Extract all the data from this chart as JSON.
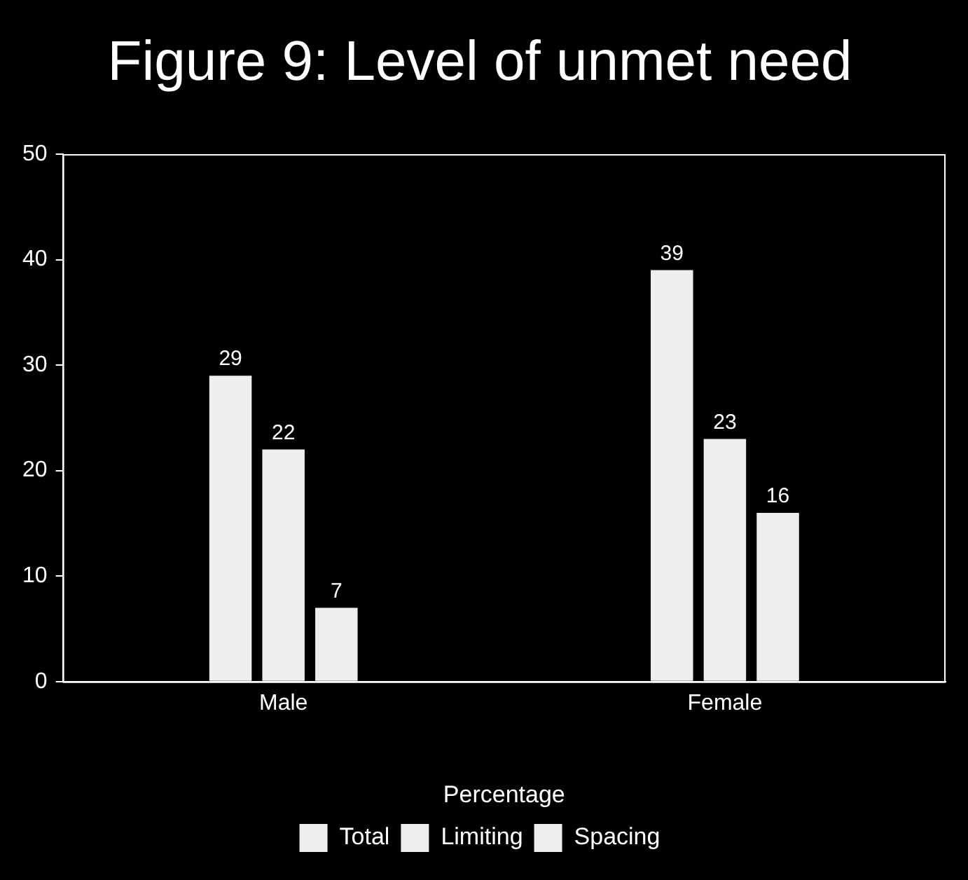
{
  "chart_data": {
    "type": "bar",
    "title": "Figure 9: Level of unmet need",
    "xlabel": "Percentage",
    "categories": [
      "Male",
      "Female"
    ],
    "series": [
      {
        "name": "Total",
        "color": "#eeeeee",
        "values": [
          29,
          39
        ]
      },
      {
        "name": "Limiting",
        "color": "#eeeeee",
        "values": [
          22,
          23
        ]
      },
      {
        "name": "Spacing",
        "color": "#eeeeee",
        "values": [
          7,
          16
        ]
      }
    ],
    "ylim": [
      0,
      50
    ],
    "yticks": [
      0,
      10,
      20,
      30,
      40,
      50
    ],
    "grid": false,
    "legend": "bottom",
    "data_labels": true
  }
}
